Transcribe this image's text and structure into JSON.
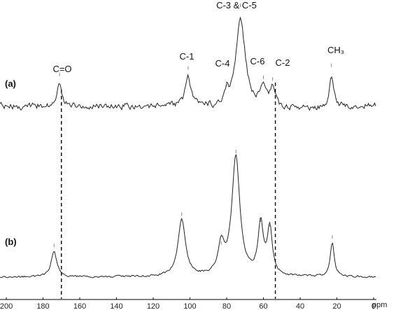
{
  "chart_data": {
    "type": "line",
    "xlabel": "ppm",
    "xlim": [
      200,
      0
    ],
    "x_reversed": true,
    "x_ticks": [
      200,
      180,
      160,
      140,
      120,
      100,
      80,
      60,
      40,
      20,
      0
    ],
    "grid": false,
    "legend": "none",
    "series": [
      {
        "name": "(a)",
        "color": "#222222",
        "peaks": [
          {
            "ppm": 171,
            "height": 0.25,
            "width": 1.6
          },
          {
            "ppm": 101,
            "height": 0.32,
            "width": 1.6
          },
          {
            "ppm": 80,
            "height": 0.14,
            "width": 1.4
          },
          {
            "ppm": 72.5,
            "height": 1.0,
            "width": 3.0
          },
          {
            "ppm": 60,
            "height": 0.22,
            "width": 2.0
          },
          {
            "ppm": 55,
            "height": 0.2,
            "width": 1.6
          },
          {
            "ppm": 23,
            "height": 0.35,
            "width": 1.3
          }
        ]
      },
      {
        "name": "(b)",
        "color": "#222222",
        "peaks": [
          {
            "ppm": 174,
            "height": 0.22,
            "width": 1.8
          },
          {
            "ppm": 104.5,
            "height": 0.48,
            "width": 2.4
          },
          {
            "ppm": 83,
            "height": 0.24,
            "width": 2.0
          },
          {
            "ppm": 75,
            "height": 1.0,
            "width": 2.6
          },
          {
            "ppm": 61.5,
            "height": 0.43,
            "width": 1.7
          },
          {
            "ppm": 56.5,
            "height": 0.39,
            "width": 1.6
          },
          {
            "ppm": 22.5,
            "height": 0.29,
            "width": 1.3
          }
        ]
      }
    ],
    "annotations": [
      {
        "text": "C=O",
        "ppm": 171
      },
      {
        "text": "C-1",
        "ppm": 101
      },
      {
        "text": "C-4",
        "ppm": 80
      },
      {
        "text": "C-3 & C-5",
        "ppm": 72.5
      },
      {
        "text": "C-6",
        "ppm": 60
      },
      {
        "text": "C-2",
        "ppm": 55
      },
      {
        "text": "CH₃",
        "ppm": 23
      }
    ],
    "guide_lines": [
      170,
      53.5
    ]
  }
}
